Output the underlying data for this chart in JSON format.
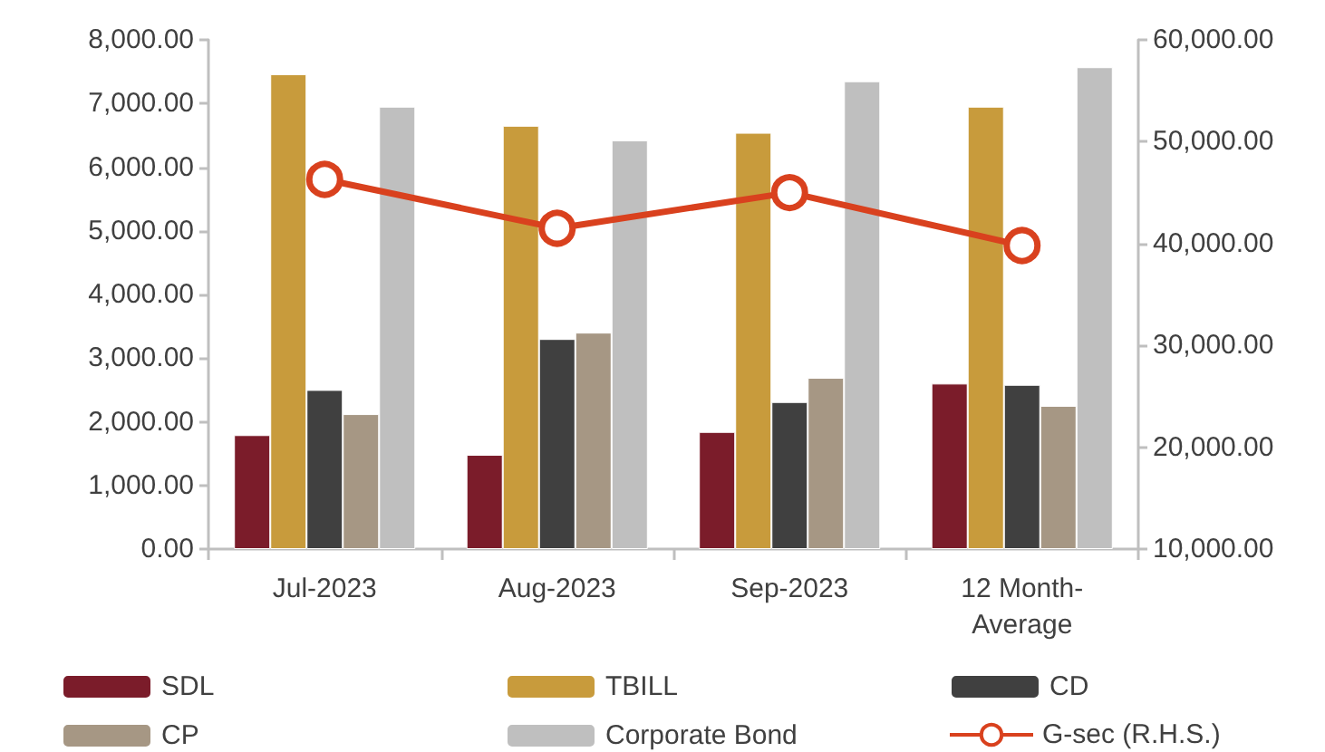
{
  "chart_data": {
    "type": "bar",
    "categories": [
      "Jul-2023",
      "Aug-2023",
      "Sep-2023",
      "12 Month-Average"
    ],
    "series": [
      {
        "name": "SDL",
        "color": "#7b1c2a",
        "values": [
          1790,
          1480,
          1840,
          2600
        ]
      },
      {
        "name": "TBILL",
        "color": "#c89b3c",
        "values": [
          7460,
          6650,
          6540,
          6950
        ]
      },
      {
        "name": "CD",
        "color": "#404040",
        "values": [
          2500,
          3300,
          2310,
          2580
        ]
      },
      {
        "name": "CP",
        "color": "#a69784",
        "values": [
          2120,
          3400,
          2690,
          2250
        ]
      },
      {
        "name": "Corporate Bond",
        "color": "#bfbfbf",
        "values": [
          6950,
          6420,
          7350,
          7570
        ]
      },
      {
        "name": "G-sec (R.H.S.)",
        "type": "line",
        "axis": "y2",
        "color": "#d9411e",
        "values": [
          46300,
          41500,
          45000,
          39800
        ]
      }
    ],
    "ylim": [
      0,
      8000
    ],
    "yticks": [
      {
        "value": 0,
        "label": "0.00"
      },
      {
        "value": 1000,
        "label": "1,000.00"
      },
      {
        "value": 2000,
        "label": "2,000.00"
      },
      {
        "value": 3000,
        "label": "3,000.00"
      },
      {
        "value": 4000,
        "label": "4,000.00"
      },
      {
        "value": 5000,
        "label": "5,000.00"
      },
      {
        "value": 6000,
        "label": "6,000.00"
      },
      {
        "value": 7000,
        "label": "7,000.00"
      },
      {
        "value": 8000,
        "label": "8,000.00"
      }
    ],
    "y2lim": [
      10000,
      60000
    ],
    "y2ticks": [
      {
        "value": 10000,
        "label": "10,000.00"
      },
      {
        "value": 20000,
        "label": "20,000.00"
      },
      {
        "value": 30000,
        "label": "30,000.00"
      },
      {
        "value": 40000,
        "label": "40,000.00"
      },
      {
        "value": 50000,
        "label": "50,000.00"
      },
      {
        "value": 60000,
        "label": "60,000.00"
      }
    ],
    "grid": false,
    "legend": "bottom",
    "marker": "circle",
    "line_style": "solid"
  }
}
